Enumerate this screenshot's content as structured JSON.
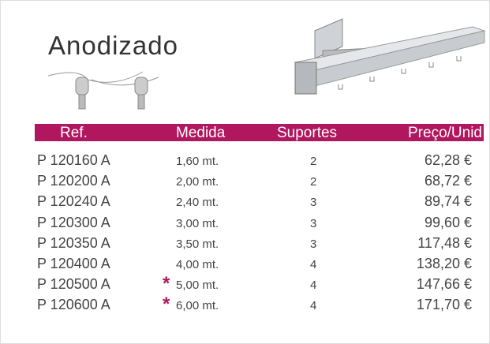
{
  "title": "Anodizado",
  "table": {
    "header": [
      "Ref.",
      "Medida",
      "Suportes",
      "Preço/Unid"
    ],
    "rows": [
      {
        "ref": "P 120160 A",
        "medida": "1,60 mt.",
        "suportes": "2",
        "preco": "62,28 €"
      },
      {
        "ref": "P 120200 A",
        "medida": "2,00 mt.",
        "suportes": "2",
        "preco": "68,72 €"
      },
      {
        "ref": "P 120240 A",
        "medida": "2,40 mt.",
        "suportes": "3",
        "preco": "89,74 €"
      },
      {
        "ref": "P 120300 A",
        "medida": "3,00 mt.",
        "suportes": "3",
        "preco": "99,60 €"
      },
      {
        "ref": "P 120350 A",
        "medida": "3,50 mt.",
        "suportes": "3",
        "preco": "117,48 €"
      },
      {
        "ref": "P 120400 A",
        "medida": "4,00 mt.",
        "suportes": "4",
        "preco": "138,20 €"
      },
      {
        "ref": "P 120500 A",
        "mark": "*",
        "medida": "5,00 mt.",
        "suportes": "4",
        "preco": "147,66 €"
      },
      {
        "ref": "P 120600 A",
        "mark": "*",
        "medida": "6,00 mt.",
        "suportes": "4",
        "preco": "171,70 €"
      }
    ]
  }
}
